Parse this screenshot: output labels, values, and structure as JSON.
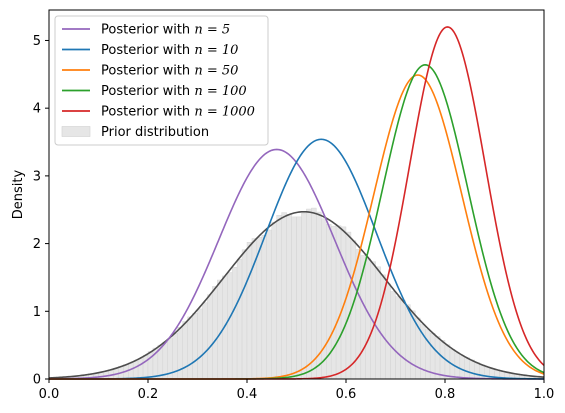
{
  "chart_data": {
    "type": "line",
    "xlabel": "",
    "ylabel": "Density",
    "xlim": [
      0.0,
      1.0
    ],
    "ylim": [
      0,
      5.45
    ],
    "xticks": [
      0.0,
      0.2,
      0.4,
      0.6,
      0.8,
      1.0
    ],
    "xtick_labels": [
      "0.0",
      "0.2",
      "0.4",
      "0.6",
      "0.8",
      "1.0"
    ],
    "yticks": [
      0,
      1,
      2,
      3,
      4,
      5
    ],
    "ytick_labels": [
      "0",
      "1",
      "2",
      "3",
      "4",
      "5"
    ],
    "grid": false,
    "legend_position": "top-left",
    "series": [
      {
        "name": "Posterior with n = 5",
        "legend_prefix": "Posterior with ",
        "legend_math": "n = 5",
        "color": "#9467bd",
        "mode": 0.46,
        "sd": 0.117,
        "peak": 3.39
      },
      {
        "name": "Posterior with n = 10",
        "legend_prefix": "Posterior with ",
        "legend_math": "n = 10",
        "color": "#1f77b4",
        "mode": 0.55,
        "sd": 0.112,
        "peak": 3.54
      },
      {
        "name": "Posterior with n = 50",
        "legend_prefix": "Posterior with ",
        "legend_math": "n = 50",
        "color": "#ff7f0e",
        "mode": 0.745,
        "sd": 0.089,
        "peak": 4.49
      },
      {
        "name": "Posterior with n = 100",
        "legend_prefix": "Posterior with ",
        "legend_math": "n = 100",
        "color": "#2ca02c",
        "mode": 0.76,
        "sd": 0.086,
        "peak": 4.64
      },
      {
        "name": "Posterior with n = 1000",
        "legend_prefix": "Posterior with ",
        "legend_math": "n = 1000",
        "color": "#d62728",
        "mode": 0.805,
        "sd": 0.0765,
        "peak": 5.2
      }
    ],
    "prior": {
      "name": "Prior distribution",
      "line_color": "#4d4d4d",
      "fill_color": "#e6e6e6",
      "edge_color": "#d0d0d0",
      "mode": 0.515,
      "sd": 0.162,
      "peak": 2.47,
      "bin_width": 0.01
    }
  }
}
